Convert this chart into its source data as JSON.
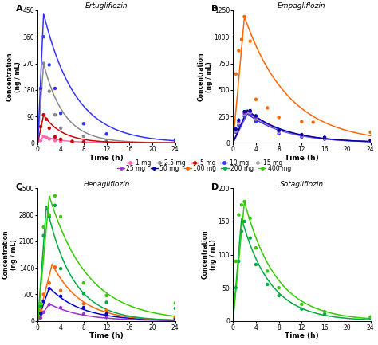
{
  "panels": {
    "A": {
      "title": "Ertugliflozin",
      "ylabel": "Concentration\n(ng / mL)",
      "xlabel": "Time (h)",
      "xlim": [
        0,
        24
      ],
      "ylim": [
        0,
        450
      ],
      "yticks": [
        0,
        90,
        180,
        270,
        360,
        450
      ],
      "xticks": [
        0,
        4,
        8,
        12,
        16,
        20,
        24
      ],
      "series": [
        {
          "label": "1 mg",
          "color": "#FF69B4",
          "obs_t": [
            0.5,
            1.0,
            1.5,
            2.0,
            3.0,
            4.0,
            6.0,
            8.0,
            12.0,
            24.0
          ],
          "obs_c": [
            8,
            22,
            18,
            13,
            8,
            5,
            3,
            2,
            1,
            0.5
          ],
          "tmax": 1.0,
          "cmax": 22,
          "ke": 0.3
        },
        {
          "label": "2.5 mg",
          "color": "#888888",
          "obs_t": [
            0.5,
            1.0,
            2.0,
            3.0,
            4.0,
            8.0,
            12.0,
            24.0
          ],
          "obs_c": [
            180,
            270,
            175,
            95,
            50,
            22,
            8,
            2
          ],
          "tmax": 1.0,
          "cmax": 270,
          "ke": 0.28
        },
        {
          "label": "5 mg",
          "color": "#CC0000",
          "obs_t": [
            0.5,
            1.0,
            1.5,
            2.0,
            3.0,
            4.0,
            6.0,
            8.0,
            12.0,
            24.0
          ],
          "obs_c": [
            55,
            95,
            80,
            50,
            20,
            12,
            5,
            3,
            1,
            0.5
          ],
          "tmax": 1.0,
          "cmax": 95,
          "ke": 0.3
        },
        {
          "label": "10 mg",
          "color": "#3333FF",
          "obs_t": [
            0.5,
            1.0,
            2.0,
            3.0,
            4.0,
            8.0,
            12.0,
            24.0
          ],
          "obs_c": [
            185,
            360,
            265,
            185,
            100,
            65,
            30,
            10
          ],
          "tmax": 1.0,
          "cmax": 440,
          "ke": 0.18
        }
      ]
    },
    "B": {
      "title": "Empagliflozin",
      "ylabel": "Concentration\n(ng / mL)",
      "xlabel": "Time (h)",
      "xlim": [
        0,
        24
      ],
      "ylim": [
        0,
        1250
      ],
      "yticks": [
        0,
        250,
        500,
        750,
        1000,
        1250
      ],
      "xticks": [
        0,
        4,
        8,
        12,
        16,
        20,
        24
      ],
      "series": [
        {
          "label": "10 mg",
          "color": "#3333FF",
          "obs_t": [
            0.5,
            1.0,
            2.0,
            3.0,
            4.0,
            8.0,
            12.0,
            16.0,
            24.0
          ],
          "obs_c": [
            100,
            165,
            250,
            270,
            200,
            85,
            55,
            35,
            15
          ],
          "tmax": 2.5,
          "cmax": 275,
          "ke": 0.15
        },
        {
          "label": "15 mg",
          "color": "#AAAAAA",
          "obs_t": [
            0.5,
            1.0,
            2.0,
            3.0,
            4.0,
            8.0,
            12.0,
            16.0,
            24.0
          ],
          "obs_c": [
            110,
            185,
            265,
            285,
            225,
            100,
            65,
            42,
            18
          ],
          "tmax": 2.5,
          "cmax": 290,
          "ke": 0.15
        },
        {
          "label": "25 mg",
          "color": "#9933CC",
          "obs_t": [
            0.5,
            1.0,
            2.0,
            3.0,
            4.0,
            8.0,
            12.0,
            16.0,
            24.0
          ],
          "obs_c": [
            120,
            200,
            280,
            295,
            240,
            110,
            72,
            48,
            20
          ],
          "tmax": 2.5,
          "cmax": 300,
          "ke": 0.15
        },
        {
          "label": "50 mg",
          "color": "#0000AA",
          "obs_t": [
            0.5,
            1.0,
            2.0,
            3.0,
            4.0,
            8.0,
            12.0,
            16.0,
            24.0
          ],
          "obs_c": [
            130,
            215,
            295,
            305,
            255,
            120,
            78,
            52,
            22
          ],
          "tmax": 2.5,
          "cmax": 310,
          "ke": 0.15
        },
        {
          "label": "100 mg",
          "color": "#FF6600",
          "obs_t": [
            0.5,
            1.0,
            1.5,
            2.0,
            3.0,
            4.0,
            6.0,
            8.0,
            12.0,
            14.0,
            24.0
          ],
          "obs_c": [
            650,
            870,
            975,
            1190,
            960,
            410,
            330,
            240,
            200,
            195,
            100
          ],
          "tmax": 2.0,
          "cmax": 1190,
          "ke": 0.13
        }
      ]
    },
    "C": {
      "title": "Henagliflozin",
      "ylabel": "Concentration\n(ng / mL)",
      "xlabel": "Time (h)",
      "xlim": [
        0,
        24
      ],
      "ylim": [
        0,
        3500
      ],
      "yticks": [
        0,
        700,
        1400,
        2100,
        2800,
        3500
      ],
      "xticks": [
        0,
        4,
        8,
        12,
        16,
        20,
        24
      ],
      "series": [
        {
          "label": "25 mg",
          "color": "#9933CC",
          "obs_t": [
            0.5,
            1.0,
            2.0,
            4.0,
            8.0,
            12.0,
            24.0
          ],
          "obs_c": [
            80,
            230,
            430,
            350,
            180,
            90,
            35
          ],
          "tmax": 2.0,
          "cmax": 450,
          "ke": 0.18
        },
        {
          "label": "50 mg",
          "color": "#0000CC",
          "obs_t": [
            0.5,
            1.0,
            2.0,
            4.0,
            8.0,
            12.0,
            24.0
          ],
          "obs_c": [
            200,
            520,
            850,
            650,
            350,
            180,
            70
          ],
          "tmax": 2.0,
          "cmax": 880,
          "ke": 0.18
        },
        {
          "label": "100 mg",
          "color": "#FF6600",
          "obs_t": [
            0.5,
            1.0,
            2.0,
            3.0,
            4.0,
            8.0,
            12.0,
            24.0
          ],
          "obs_c": [
            280,
            700,
            1000,
            1420,
            800,
            450,
            270,
            110
          ],
          "tmax": 2.5,
          "cmax": 1500,
          "ke": 0.2
        },
        {
          "label": "200 mg",
          "color": "#00AA44",
          "obs_t": [
            0.5,
            1.0,
            2.0,
            3.0,
            4.0,
            8.0,
            12.0,
            24.0
          ],
          "obs_c": [
            380,
            2250,
            2750,
            3050,
            1380,
            720,
            490,
            330
          ],
          "tmax": 1.5,
          "cmax": 3050,
          "ke": 0.22
        },
        {
          "label": "400 mg",
          "color": "#33CC00",
          "obs_t": [
            0.5,
            1.0,
            2.0,
            3.0,
            4.0,
            8.0,
            12.0,
            24.0
          ],
          "obs_c": [
            450,
            2480,
            2800,
            3300,
            2750,
            1000,
            670,
            470
          ],
          "tmax": 2.0,
          "cmax": 3300,
          "ke": 0.15
        }
      ]
    },
    "D": {
      "title": "Sotagliflozin",
      "ylabel": "Concentration\n(ng / mL)",
      "xlabel": "Time (h)",
      "xlim": [
        0,
        24
      ],
      "ylim": [
        0,
        200
      ],
      "yticks": [
        0,
        50,
        100,
        150,
        200
      ],
      "xticks": [
        0,
        4,
        8,
        12,
        16,
        20,
        24
      ],
      "series": [
        {
          "label": "200 mg",
          "color": "#00AA44",
          "obs_t": [
            0.5,
            1.0,
            1.5,
            2.0,
            3.0,
            4.0,
            6.0,
            8.0,
            12.0,
            16.0,
            24.0
          ],
          "obs_c": [
            50,
            90,
            135,
            150,
            125,
            85,
            55,
            38,
            18,
            10,
            4
          ],
          "tmax": 1.5,
          "cmax": 155,
          "ke": 0.2
        },
        {
          "label": "400 mg",
          "color": "#33CC00",
          "obs_t": [
            0.5,
            1.0,
            1.5,
            2.0,
            3.0,
            4.0,
            6.0,
            8.0,
            12.0,
            16.0,
            24.0
          ],
          "obs_c": [
            90,
            160,
            175,
            180,
            155,
            110,
            75,
            50,
            25,
            14,
            6
          ],
          "tmax": 2.0,
          "cmax": 180,
          "ke": 0.18
        }
      ]
    }
  },
  "legend_items": [
    {
      "label": "1 mg",
      "color": "#FF69B4"
    },
    {
      "label": "2.5 mg",
      "color": "#888888"
    },
    {
      "label": "5 mg",
      "color": "#CC0000"
    },
    {
      "label": "10 mg",
      "color": "#3333FF"
    },
    {
      "label": "15 mg",
      "color": "#AAAAAA"
    },
    {
      "label": "25 mg",
      "color": "#9933CC"
    },
    {
      "label": "50 mg",
      "color": "#0000AA"
    },
    {
      "label": "100 mg",
      "color": "#FF6600"
    },
    {
      "label": "200 mg",
      "color": "#00AA44"
    },
    {
      "label": "400 mg",
      "color": "#33CC00"
    }
  ]
}
